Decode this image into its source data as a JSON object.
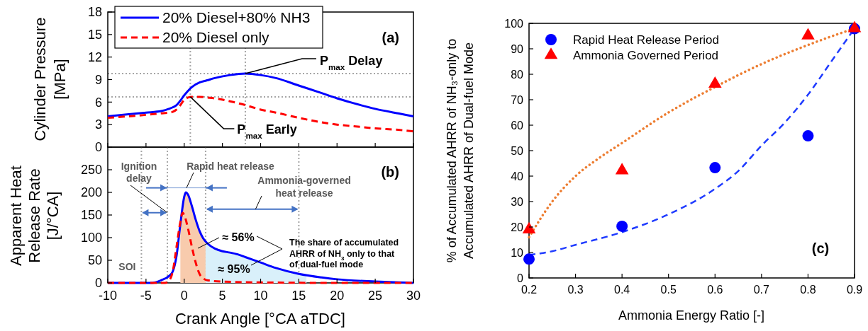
{
  "chart_data": [
    {
      "type": "line",
      "ylabel": "Cylinder Pressure [MPa]",
      "xlim": [
        -10,
        30
      ],
      "xticks": [
        -10,
        -5,
        0,
        5,
        10,
        15,
        20,
        25,
        30
      ],
      "ylim": [
        0,
        18
      ],
      "yticks": [
        0,
        3,
        6,
        9,
        12,
        15,
        18
      ],
      "tick_labels": "y",
      "legend": "top left",
      "series": [
        {
          "name": "20% Diesel+80% NH3",
          "color": "#0000ff",
          "line_style": "solid",
          "x": [
            -10,
            -5,
            -3,
            -2,
            -1.5,
            -1,
            -0.5,
            0,
            0.5,
            1,
            2,
            3,
            4,
            6,
            8,
            10,
            12,
            15,
            18,
            20,
            22,
            25,
            28,
            30
          ],
          "values": [
            4.1,
            4.6,
            4.8,
            5.1,
            5.3,
            5.6,
            6.2,
            6.9,
            7.5,
            8.0,
            8.6,
            8.9,
            9.2,
            9.6,
            9.8,
            9.6,
            9.2,
            8.2,
            7.2,
            6.5,
            5.9,
            5.1,
            4.5,
            4.1
          ]
        },
        {
          "name": "20% Diesel only",
          "color": "#ff0000",
          "line_style": "dashed",
          "x": [
            -10,
            -5,
            -3,
            -2,
            -1.5,
            -1,
            -0.5,
            0,
            0.5,
            1,
            2,
            3,
            4,
            6,
            8,
            10,
            12,
            15,
            18,
            20,
            22,
            25,
            28,
            30
          ],
          "values": [
            3.9,
            4.3,
            4.5,
            4.6,
            4.7,
            5.0,
            5.6,
            6.3,
            6.6,
            6.7,
            6.7,
            6.6,
            6.5,
            6.1,
            5.6,
            5.0,
            4.6,
            3.9,
            3.3,
            3.0,
            2.8,
            2.5,
            2.3,
            2.1
          ]
        }
      ],
      "ref_lines": [
        {
          "axis": "x",
          "value": 0.8,
          "color": "#a6a6a6",
          "line_style": "dotted"
        },
        {
          "axis": "x",
          "value": 8,
          "color": "#a6a6a6",
          "line_style": "dotted"
        },
        {
          "axis": "y",
          "value": 9.8,
          "color": "#a6a6a6",
          "line_style": "dotted"
        },
        {
          "axis": "y",
          "value": 6.7,
          "color": "#a6a6a6",
          "line_style": "dotted"
        }
      ],
      "annotations": [
        "(a)",
        {
          "text": "P$_{max}$ Delay",
          "x": 8,
          "y": 9.8
        },
        {
          "text": "P$_{max}$ Early",
          "x": 0.8,
          "y": 6.7
        }
      ]
    },
    {
      "type": "line",
      "xlabel": "Crank Angle [°CA aTDC]",
      "ylabel": "Apparent Heat Release Rate [J/°CA]",
      "xlim": [
        -10,
        30
      ],
      "xticks": [
        -10,
        -5,
        0,
        5,
        10,
        15,
        20,
        25,
        30
      ],
      "ylim": [
        0,
        300
      ],
      "yticks": [
        0,
        50,
        100,
        150,
        200,
        250
      ],
      "series": [
        {
          "type": "area",
          "color": "#f8cbad",
          "x": [
            -0.5,
            0,
            0.2,
            0.5,
            1,
            1.5,
            2,
            2.5,
            2.8
          ],
          "values": [
            130,
            190,
            200,
            195,
            170,
            140,
            115,
            98,
            92
          ]
        },
        {
          "type": "area",
          "color": "#d9f0fa",
          "x": [
            2.8,
            3,
            4,
            5,
            6,
            7,
            8,
            10,
            12,
            15,
            16
          ],
          "values": [
            92,
            88,
            76,
            70,
            67,
            63,
            57,
            45,
            33,
            20,
            17
          ]
        },
        {
          "color": "#0000ff",
          "line_style": "solid",
          "x": [
            -10,
            -5,
            -4.2,
            -3,
            -2,
            -1.5,
            -1,
            -0.5,
            0,
            0.2,
            0.5,
            1,
            1.5,
            2,
            2.5,
            3,
            4,
            5,
            6,
            7,
            8,
            10,
            12,
            15,
            18,
            20,
            25,
            28,
            30
          ],
          "values": [
            0,
            0,
            0,
            6,
            15,
            25,
            60,
            130,
            190,
            200,
            195,
            170,
            140,
            115,
            98,
            88,
            76,
            70,
            67,
            63,
            57,
            45,
            33,
            20,
            12,
            8,
            3,
            1,
            0
          ]
        },
        {
          "color": "#ff0000",
          "line_style": "dashed",
          "x": [
            -10,
            -2.5,
            -2,
            -1.5,
            -1,
            -0.5,
            -0.2,
            0,
            0.5,
            1,
            1.5,
            2,
            2.5,
            3,
            5,
            10,
            20,
            30
          ],
          "values": [
            0,
            0,
            5,
            25,
            80,
            135,
            155,
            150,
            120,
            80,
            45,
            20,
            10,
            6,
            3,
            1,
            0,
            0
          ]
        }
      ],
      "ref_lines": [
        {
          "axis": "x",
          "value": -5.6,
          "label": "SOI",
          "color": "#a6a6a6",
          "line_style": "dotted"
        },
        {
          "axis": "x",
          "value": -2.2,
          "color": "#a6a6a6",
          "line_style": "dotted"
        },
        {
          "axis": "x",
          "value": 2.8,
          "color": "#a6a6a6",
          "line_style": "dotted"
        },
        {
          "axis": "x",
          "value": 15,
          "color": "#a6a6a6",
          "line_style": "dotted"
        }
      ],
      "annotations": [
        "(b)",
        {
          "text": "Ignition delay",
          "x": -2.2,
          "y": 155
        },
        {
          "text": "Rapid heat release",
          "x": -2.2,
          "y": 210
        },
        {
          "text": "Ammonia-governed heat release",
          "x": 15,
          "y": 163
        },
        "≈ 56%",
        "≈ 95%",
        "The share of accumulated AHRR of NH$_{3}$ only to that of dual-fuel mode"
      ]
    },
    {
      "type": "scatter",
      "xlabel": "Ammonia Energy Ratio [-]",
      "ylabel": "% of Accumulated AHRR of NH₃-only to Accumulated AHRR of Dual-fuel Mode",
      "xlim": [
        0.2,
        0.9
      ],
      "xticks": [
        0.2,
        0.3,
        0.4,
        0.5,
        0.6,
        0.7,
        0.8,
        0.9
      ],
      "ylim": [
        0,
        100
      ],
      "yticks": [
        0,
        10,
        20,
        30,
        40,
        50,
        60,
        70,
        80,
        90,
        100
      ],
      "legend": "top left",
      "series": [
        {
          "name": "Rapid Heat Release Period",
          "color": "#0000ff",
          "marker": "circle",
          "x": [
            0.2,
            0.4,
            0.6,
            0.8,
            0.9
          ],
          "values": [
            7.4,
            20.3,
            43.3,
            55.8,
            97.9
          ]
        },
        {
          "name": "Ammonia Governed Period",
          "color": "#ff0000",
          "marker": "triangle",
          "x": [
            0.2,
            0.4,
            0.6,
            0.8,
            0.9
          ],
          "values": [
            19,
            42.2,
            76.2,
            95.2,
            98
          ]
        },
        {
          "type": "line",
          "color": "#1f3bff",
          "line_style": "dashed",
          "x": [
            0.2,
            0.25,
            0.3,
            0.4,
            0.5,
            0.6,
            0.65,
            0.7,
            0.75,
            0.8,
            0.85,
            0.9
          ],
          "values": [
            9,
            10.5,
            13,
            18,
            25,
            35,
            42,
            52,
            61,
            72,
            85,
            98
          ]
        },
        {
          "type": "line",
          "color": "#ed7d31",
          "line_style": "dotted",
          "x": [
            0.2,
            0.25,
            0.3,
            0.35,
            0.4,
            0.5,
            0.6,
            0.7,
            0.8,
            0.9
          ],
          "values": [
            16,
            30,
            40,
            47,
            53,
            65,
            75,
            84,
            91.5,
            98
          ]
        }
      ],
      "annotations": [
        "(c)"
      ]
    }
  ]
}
